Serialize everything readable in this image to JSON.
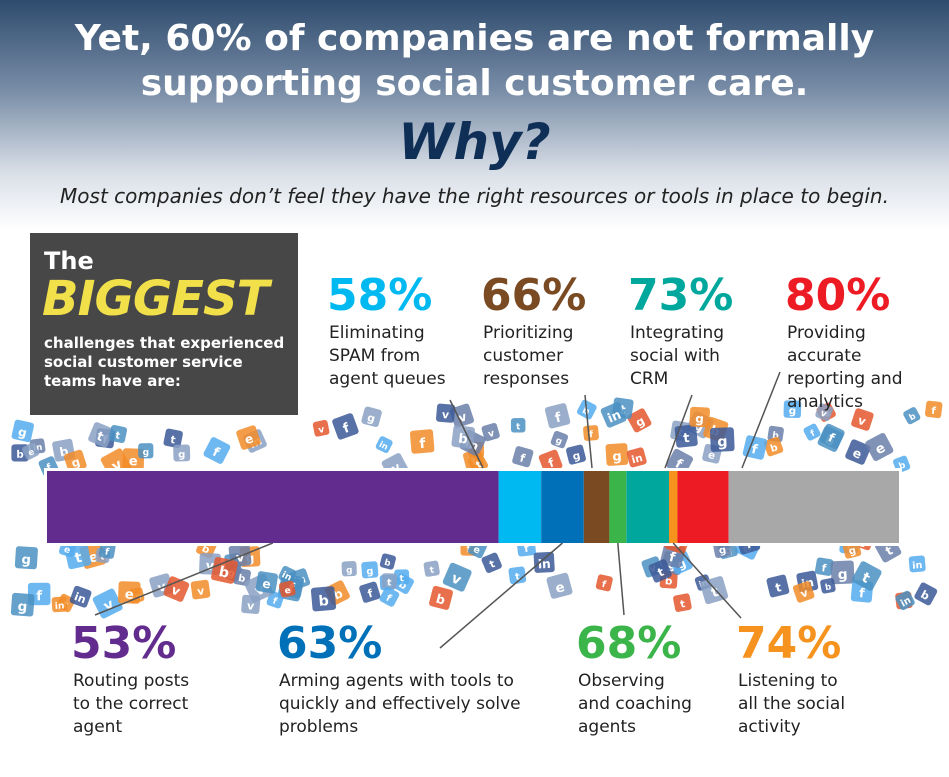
{
  "headline": {
    "line1": "Yet, 60% of companies are not formally",
    "line2": "supporting social customer care.",
    "why": "Why?",
    "subtitle": "Most companies don’t feel they have the right resources or tools in place to begin."
  },
  "biggest_box": {
    "the": "The",
    "biggest": "BIGGEST",
    "desc_lines": [
      "challenges that experienced",
      "social customer service",
      "teams have are:"
    ]
  },
  "colors": {
    "purple": "#622b8e",
    "cyan": "#00b9f1",
    "blue": "#0070b8",
    "brown": "#7a4a22",
    "green": "#3bb44a",
    "teal": "#00a79d",
    "orange": "#f6921e",
    "red": "#ed1c24",
    "gray": "#a8a8a8"
  },
  "chart_data": {
    "type": "bar",
    "orientation": "horizontal-stacked",
    "categories": [
      "Routing posts to the correct agent",
      "Eliminating SPAM from agent queues",
      "Arming agents with tools to quickly and effectively solve problems",
      "Prioritizing customer responses",
      "Observing and coaching agents",
      "Integrating social with CRM",
      "Listening to all the social activity",
      "Providing accurate reporting and analytics"
    ],
    "values": [
      53,
      58,
      63,
      66,
      68,
      73,
      74,
      80
    ],
    "labels": [
      "53%",
      "58%",
      "63%",
      "66%",
      "68%",
      "73%",
      "74%",
      "80%"
    ],
    "xlim": [
      0,
      100
    ],
    "stats": [
      {
        "pct": "53%",
        "lines": [
          "Routing posts",
          "to the correct",
          "agent"
        ],
        "color": "#622b8e"
      },
      {
        "pct": "58%",
        "lines": [
          "Eliminating",
          "SPAM from",
          "agent queues"
        ],
        "color": "#00b9f1"
      },
      {
        "pct": "63%",
        "lines": [
          "Arming agents with tools to",
          "quickly and effectively solve",
          "problems"
        ],
        "color": "#0070b8"
      },
      {
        "pct": "66%",
        "lines": [
          "Prioritizing",
          "customer",
          "responses"
        ],
        "color": "#7a4a22"
      },
      {
        "pct": "68%",
        "lines": [
          "Observing",
          "and coaching",
          "agents"
        ],
        "color": "#3bb44a"
      },
      {
        "pct": "73%",
        "lines": [
          "Integrating",
          "social with",
          "CRM"
        ],
        "color": "#00a79d"
      },
      {
        "pct": "74%",
        "lines": [
          "Listening to",
          "all the social",
          "activity"
        ],
        "color": "#f6921e"
      },
      {
        "pct": "80%",
        "lines": [
          "Providing",
          "accurate",
          "reporting and",
          "analytics"
        ],
        "color": "#ed1c24"
      }
    ]
  }
}
